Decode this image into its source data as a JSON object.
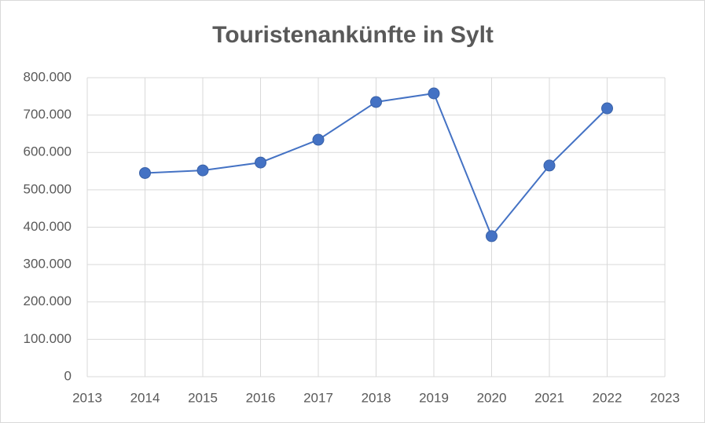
{
  "chart_data": {
    "type": "line",
    "title": "Touristenankünfte in Sylt",
    "x": [
      2014,
      2015,
      2016,
      2017,
      2018,
      2019,
      2020,
      2021,
      2022
    ],
    "series": [
      {
        "color": "#4472c4",
        "values": [
          545000,
          552000,
          573000,
          634000,
          735000,
          758000,
          376000,
          565000,
          718000
        ]
      }
    ],
    "xlim": [
      2013,
      2023
    ],
    "xticks": [
      2013,
      2014,
      2015,
      2016,
      2017,
      2018,
      2019,
      2020,
      2021,
      2022,
      2023
    ],
    "ylim": [
      0,
      800000
    ],
    "yticks": [
      0,
      {
        "value": 100000,
        "label": "100.000"
      },
      {
        "value": 200000,
        "label": "200.000"
      },
      {
        "value": 300000,
        "label": "300.000"
      },
      {
        "value": 400000,
        "label": "400.000"
      },
      {
        "value": 500000,
        "label": "500.000"
      },
      {
        "value": 600000,
        "label": "600.000"
      },
      {
        "value": 700000,
        "label": "700.000"
      },
      {
        "value": 800000,
        "label": "800.000"
      }
    ],
    "grid": true
  }
}
